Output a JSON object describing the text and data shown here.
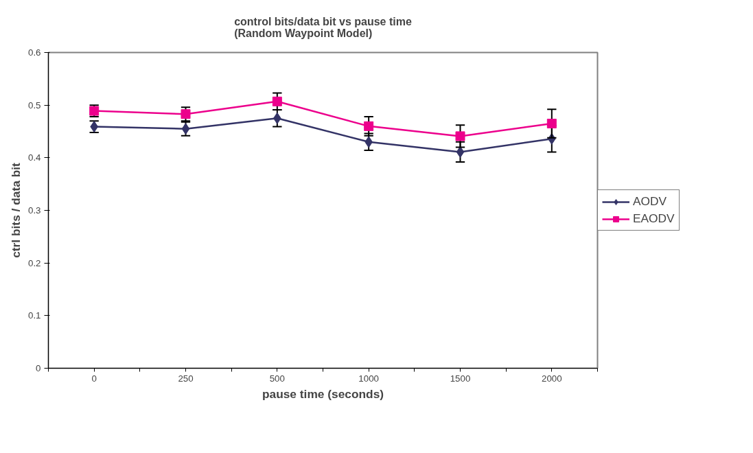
{
  "chart_data": {
    "type": "line",
    "title": "control bits/data bit vs pause time\n(Random Waypoint Model)",
    "xlabel": "pause time (seconds)",
    "ylabel": "ctrl bits / data bit",
    "categories": [
      "0",
      "250",
      "500",
      "1000",
      "1500",
      "2000"
    ],
    "series": [
      {
        "name": "AODV",
        "color": "#333366",
        "marker": "diamond",
        "values": [
          0.459,
          0.455,
          0.475,
          0.43,
          0.411,
          0.436
        ],
        "errors": [
          0.011,
          0.013,
          0.016,
          0.016,
          0.019,
          0.025
        ]
      },
      {
        "name": "EAODV",
        "color": "#ec008c",
        "marker": "square",
        "values": [
          0.489,
          0.483,
          0.507,
          0.46,
          0.441,
          0.465
        ],
        "errors": [
          0.011,
          0.013,
          0.016,
          0.018,
          0.021,
          0.027
        ]
      }
    ],
    "ylim": [
      0,
      0.6
    ],
    "yticks": [
      0,
      0.1,
      0.2,
      0.3,
      0.4,
      0.5,
      0.6
    ],
    "grid": false,
    "legend": "right"
  }
}
